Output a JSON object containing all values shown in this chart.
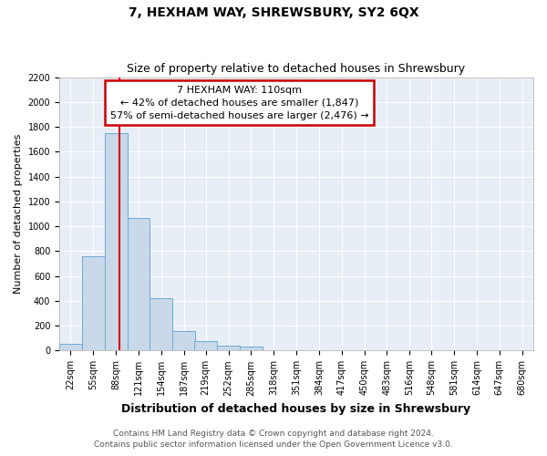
{
  "title": "7, HEXHAM WAY, SHREWSBURY, SY2 6QX",
  "subtitle": "Size of property relative to detached houses in Shrewsbury",
  "xlabel": "Distribution of detached houses by size in Shrewsbury",
  "ylabel": "Number of detached properties",
  "bin_labels": [
    "22sqm",
    "55sqm",
    "88sqm",
    "121sqm",
    "154sqm",
    "187sqm",
    "219sqm",
    "252sqm",
    "285sqm",
    "318sqm",
    "351sqm",
    "384sqm",
    "417sqm",
    "450sqm",
    "483sqm",
    "516sqm",
    "548sqm",
    "581sqm",
    "614sqm",
    "647sqm",
    "680sqm"
  ],
  "bin_edges": [
    22,
    55,
    88,
    121,
    154,
    187,
    219,
    252,
    285,
    318,
    351,
    384,
    417,
    450,
    483,
    516,
    548,
    581,
    614,
    647,
    680
  ],
  "bar_heights": [
    55,
    760,
    1750,
    1065,
    425,
    155,
    80,
    40,
    30,
    0,
    0,
    0,
    0,
    0,
    0,
    0,
    0,
    0,
    0,
    0
  ],
  "bar_color": "#c9d9ea",
  "bar_edge_color": "#6aaad4",
  "red_line_x": 110,
  "ylim": [
    0,
    2200
  ],
  "yticks": [
    0,
    200,
    400,
    600,
    800,
    1000,
    1200,
    1400,
    1600,
    1800,
    2000,
    2200
  ],
  "annotation_line1": "7 HEXHAM WAY: 110sqm",
  "annotation_line2": "← 42% of detached houses are smaller (1,847)",
  "annotation_line3": "57% of semi-detached houses are larger (2,476) →",
  "annotation_box_color": "#ffffff",
  "annotation_box_edge": "#cc0000",
  "footer_line1": "Contains HM Land Registry data © Crown copyright and database right 2024.",
  "footer_line2": "Contains public sector information licensed under the Open Government Licence v3.0.",
  "plot_bg_color": "#e8eef6",
  "title_fontsize": 10,
  "subtitle_fontsize": 9,
  "ylabel_fontsize": 8,
  "xlabel_fontsize": 9,
  "annotation_fontsize": 8,
  "tick_fontsize": 7,
  "footer_fontsize": 6.5
}
